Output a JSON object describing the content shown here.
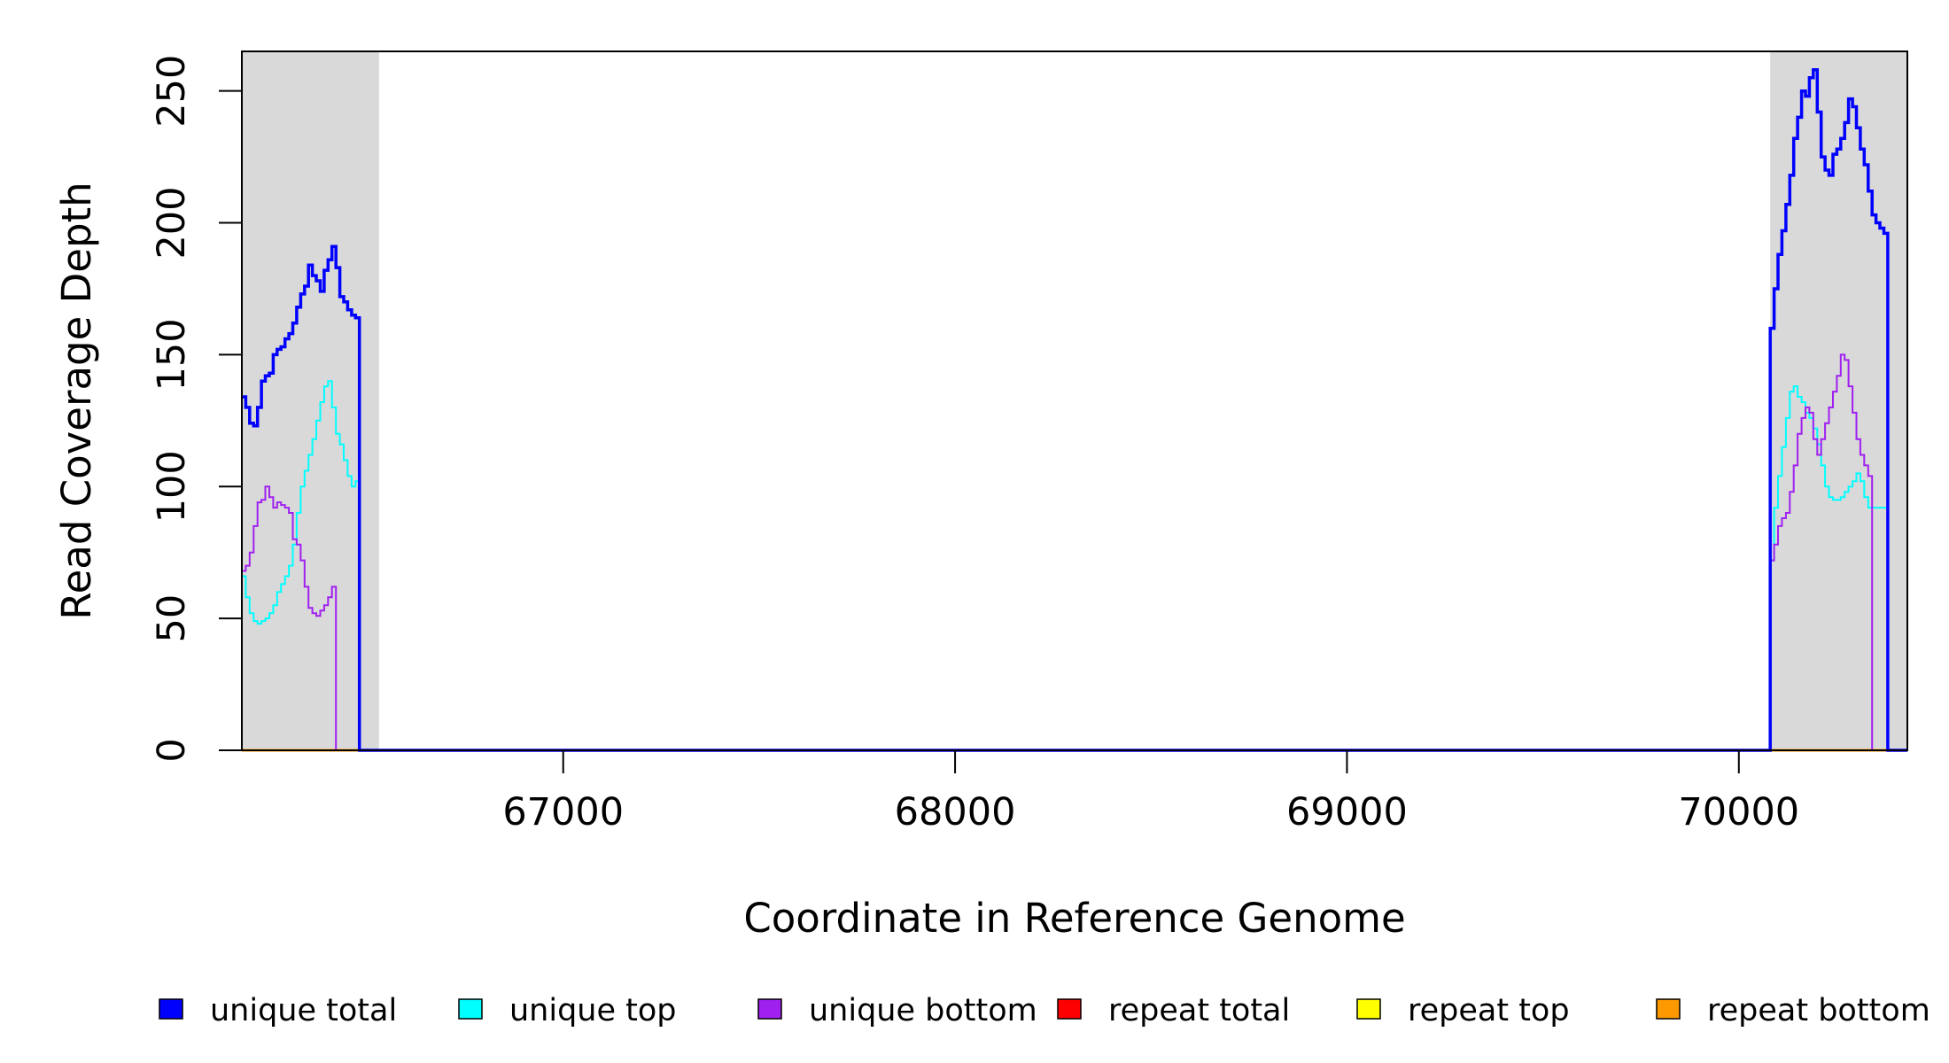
{
  "chart_data": {
    "type": "line",
    "title": "",
    "xlabel": "Coordinate in Reference Genome",
    "ylabel": "Read Coverage Depth",
    "xlim": [
      66180,
      70430
    ],
    "ylim": [
      0,
      265
    ],
    "x_ticks": [
      67000,
      68000,
      69000,
      70000
    ],
    "y_ticks": [
      0,
      50,
      100,
      150,
      200,
      250
    ],
    "grid": false,
    "legend_position": "bottom",
    "shaded_regions": [
      {
        "x_start": 66180,
        "x_end": 66530,
        "color": "#d9d9d9"
      },
      {
        "x_start": 70080,
        "x_end": 70430,
        "color": "#d9d9d9"
      }
    ],
    "series": [
      {
        "name": "unique total",
        "color": "#0000ff",
        "x": [
          66180,
          66190,
          66200,
          66210,
          66220,
          66230,
          66240,
          66250,
          66260,
          66270,
          66280,
          66290,
          66300,
          66310,
          66320,
          66330,
          66340,
          66350,
          66360,
          66370,
          66380,
          66390,
          66400,
          66410,
          66420,
          66430,
          66440,
          66450,
          66460,
          66470,
          66480,
          66490,
          66500,
          66510,
          66520,
          66530,
          66531,
          70079,
          70080,
          70090,
          70100,
          70110,
          70120,
          70130,
          70140,
          70150,
          70160,
          70170,
          70180,
          70190,
          70200,
          70210,
          70220,
          70230,
          70240,
          70250,
          70260,
          70270,
          70280,
          70290,
          70300,
          70310,
          70320,
          70330,
          70340,
          70350,
          70360,
          70370,
          70380,
          70390,
          70400,
          70410,
          70420,
          70430
        ],
        "values": [
          134,
          130,
          124,
          123,
          130,
          140,
          142,
          143,
          150,
          152,
          153,
          156,
          158,
          162,
          168,
          173,
          176,
          184,
          180,
          178,
          174,
          182,
          186,
          191,
          183,
          172,
          170,
          167,
          165,
          164,
          0,
          0,
          0,
          0,
          0,
          0,
          0,
          0,
          160,
          175,
          188,
          197,
          207,
          218,
          232,
          240,
          250,
          248,
          255,
          258,
          242,
          225,
          220,
          218,
          226,
          228,
          232,
          238,
          247,
          244,
          236,
          228,
          222,
          212,
          203,
          200,
          198,
          196,
          0,
          0,
          0,
          0,
          0,
          0
        ],
        "note_ignore": ""
      },
      {
        "name": "unique top",
        "color": "#00ffff",
        "x": [
          66180,
          66190,
          66200,
          66210,
          66220,
          66230,
          66240,
          66250,
          66260,
          66270,
          66280,
          66290,
          66300,
          66310,
          66320,
          66330,
          66340,
          66350,
          66360,
          66370,
          66380,
          66390,
          66400,
          66410,
          66420,
          66430,
          66440,
          66450,
          66460,
          66470,
          66480,
          66490,
          66500,
          66510,
          66520,
          66530,
          66531,
          70079,
          70080,
          70090,
          70100,
          70110,
          70120,
          70130,
          70140,
          70150,
          70160,
          70170,
          70180,
          70190,
          70200,
          70210,
          70220,
          70230,
          70240,
          70250,
          70260,
          70270,
          70280,
          70290,
          70300,
          70310,
          70320,
          70330,
          70340,
          70350,
          70360,
          70370,
          70380,
          70390,
          70400,
          70410,
          70420,
          70430
        ],
        "values": [
          66,
          58,
          52,
          49,
          48,
          49,
          50,
          52,
          55,
          60,
          63,
          66,
          70,
          78,
          90,
          100,
          106,
          112,
          118,
          125,
          132,
          138,
          140,
          130,
          120,
          116,
          110,
          104,
          100,
          102,
          0,
          0,
          0,
          0,
          0,
          0,
          0,
          0,
          72,
          92,
          104,
          115,
          126,
          136,
          138,
          134,
          132,
          128,
          126,
          122,
          116,
          108,
          100,
          96,
          95,
          95,
          96,
          98,
          100,
          102,
          105,
          102,
          96,
          92,
          92,
          92,
          92,
          92,
          0,
          0,
          0,
          0,
          0,
          0
        ]
      },
      {
        "name": "unique bottom",
        "color": "#a020f0",
        "x": [
          66180,
          66190,
          66200,
          66210,
          66220,
          66230,
          66240,
          66250,
          66260,
          66270,
          66280,
          66290,
          66300,
          66310,
          66320,
          66330,
          66340,
          66350,
          66360,
          66370,
          66380,
          66390,
          66400,
          66410,
          66420,
          66430,
          66440,
          66450,
          66460,
          66470,
          66480,
          66490,
          66500,
          66510,
          66520,
          66530,
          66531,
          70079,
          70080,
          70090,
          70100,
          70110,
          70120,
          70130,
          70140,
          70150,
          70160,
          70170,
          70180,
          70190,
          70200,
          70210,
          70220,
          70230,
          70240,
          70250,
          70260,
          70270,
          70280,
          70290,
          70300,
          70310,
          70320,
          70330,
          70340,
          70350,
          70360,
          70370,
          70380,
          70390,
          70400,
          70410,
          70420,
          70430
        ],
        "values": [
          68,
          70,
          75,
          85,
          94,
          95,
          100,
          96,
          92,
          94,
          93,
          92,
          90,
          80,
          78,
          72,
          62,
          54,
          52,
          51,
          53,
          55,
          58,
          62,
          0,
          0,
          0,
          0,
          0,
          0,
          0,
          0,
          0,
          0,
          0,
          0,
          0,
          0,
          72,
          78,
          85,
          88,
          90,
          98,
          108,
          120,
          126,
          130,
          128,
          118,
          112,
          118,
          124,
          130,
          136,
          142,
          150,
          148,
          138,
          128,
          118,
          112,
          108,
          104,
          0,
          0,
          0,
          0,
          0,
          0,
          0,
          0,
          0,
          0
        ],
        "note_ignore": ""
      },
      {
        "name": "repeat total",
        "color": "#ff0000",
        "x": [
          66180,
          70430
        ],
        "values": [
          0,
          0
        ]
      },
      {
        "name": "repeat top",
        "color": "#ffff00",
        "x": [
          66180,
          70430
        ],
        "values": [
          0,
          0
        ]
      },
      {
        "name": "repeat bottom",
        "color": "#ff9900",
        "x": [
          66180,
          70430
        ],
        "values": [
          0,
          0
        ]
      }
    ]
  }
}
